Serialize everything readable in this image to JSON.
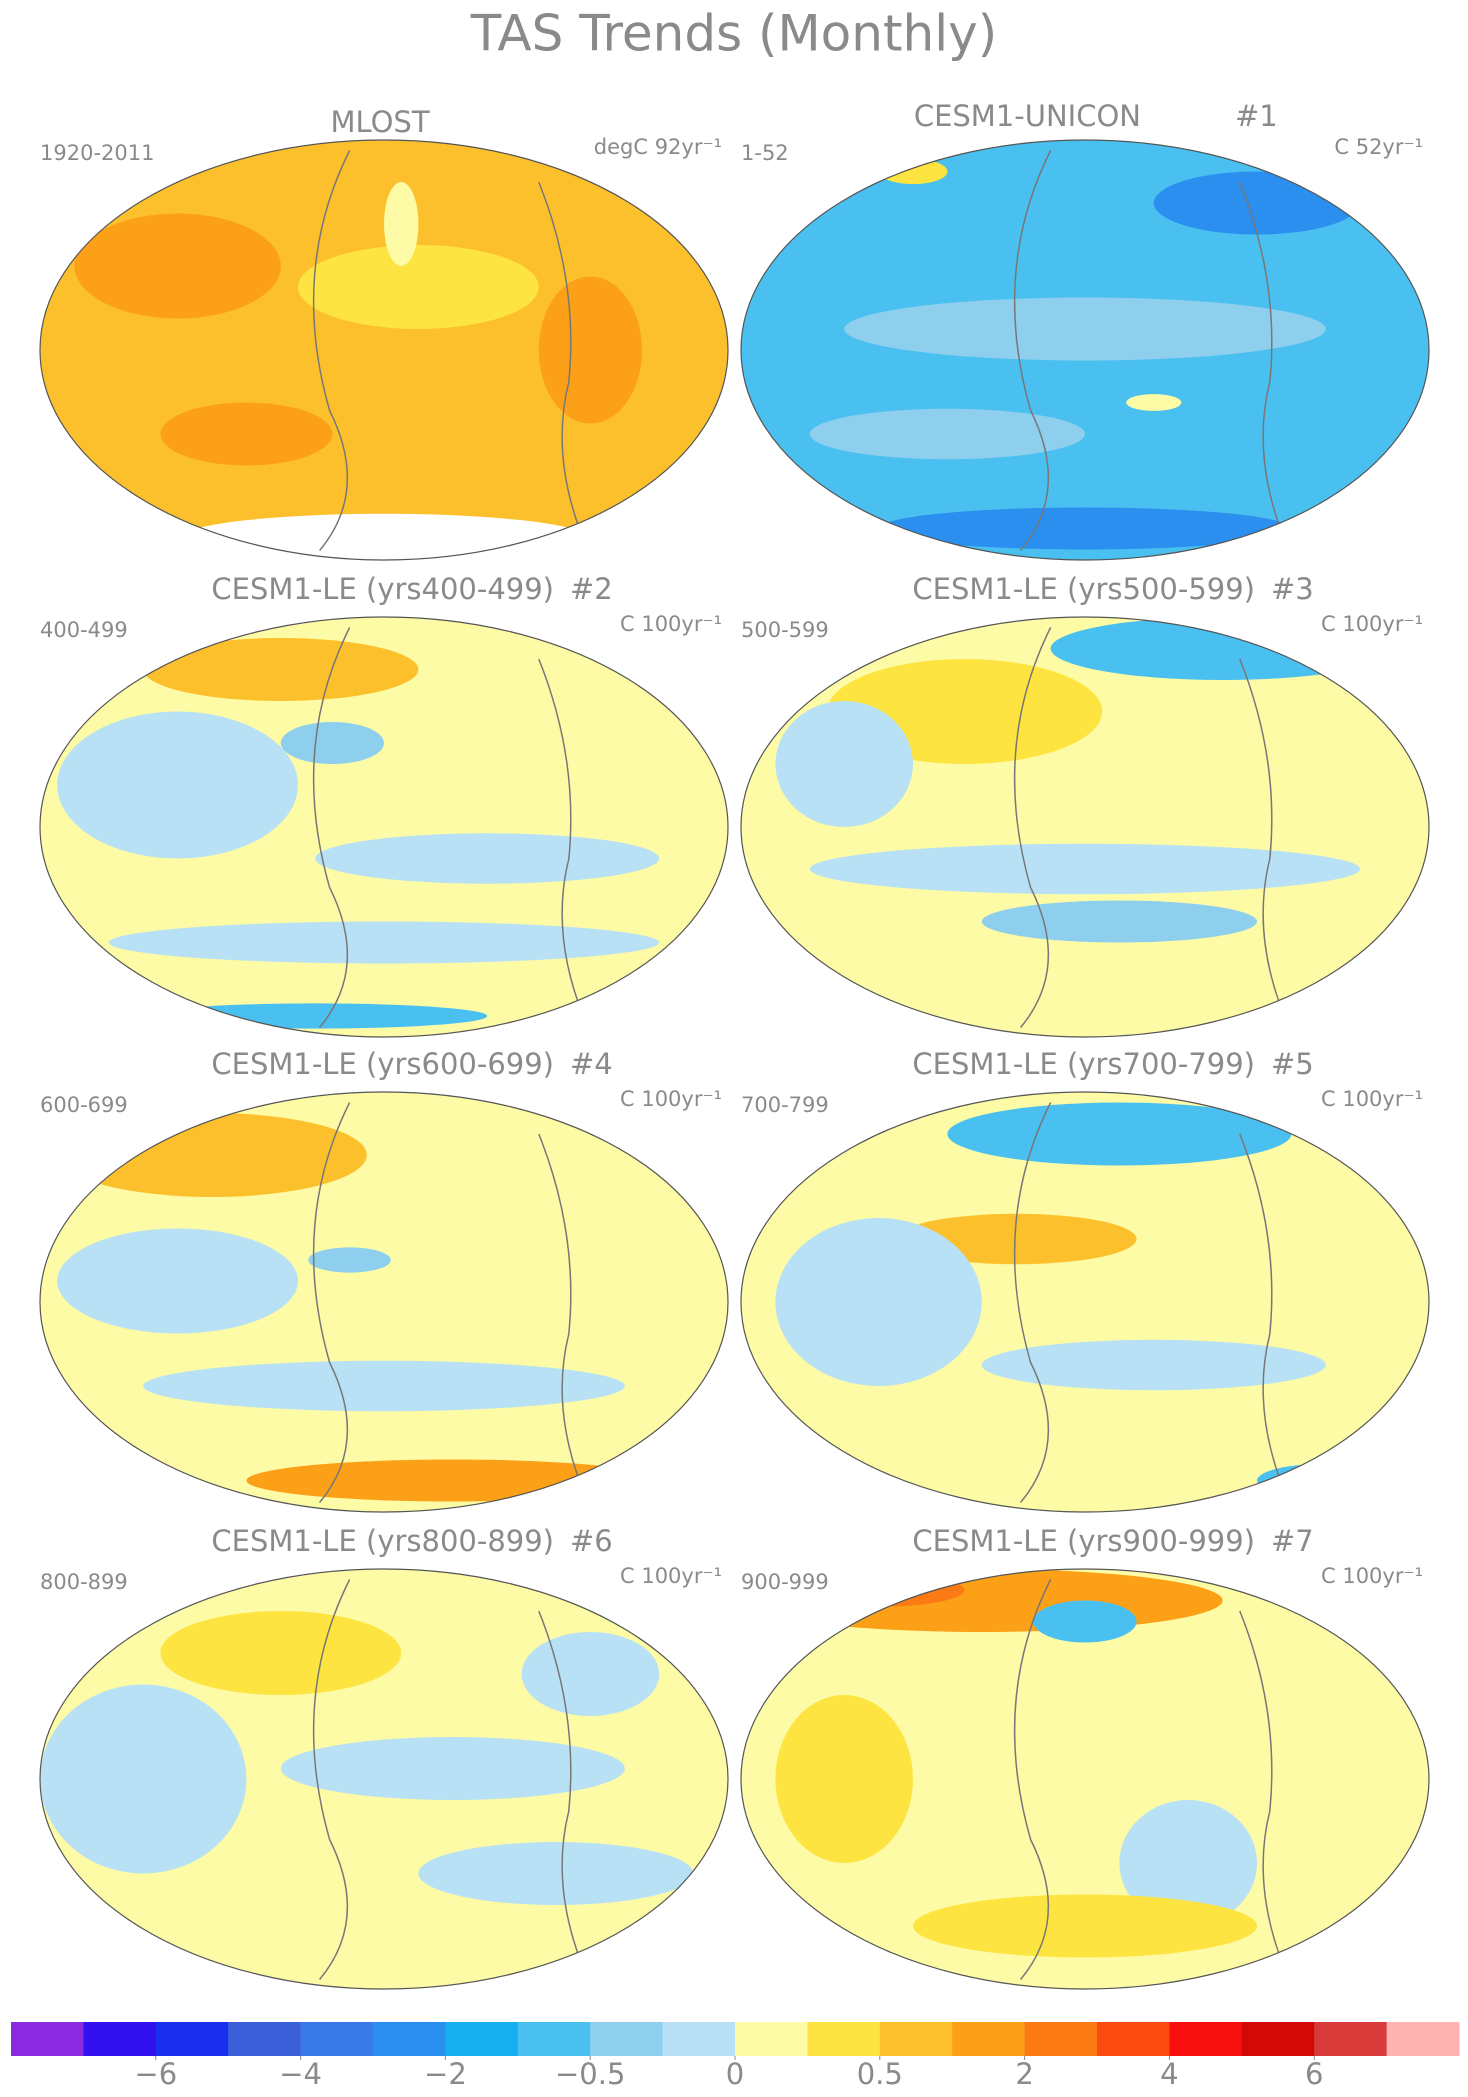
{
  "title": "TAS Trends (Monthly)",
  "panels": [
    {
      "title": "MLOST",
      "left_label": "1920-2011",
      "right_label": "degC 92yr⁻¹"
    },
    {
      "title": "CESM1-UNICON",
      "number": "#1",
      "left_label": "1-52",
      "right_label": "C 52yr⁻¹"
    },
    {
      "title": "CESM1-LE (yrs400-499)",
      "number": "#2",
      "left_label": "400-499",
      "right_label": "C 100yr⁻¹"
    },
    {
      "title": "CESM1-LE (yrs500-599)",
      "number": "#3",
      "left_label": "500-599",
      "right_label": "C 100yr⁻¹"
    },
    {
      "title": "CESM1-LE (yrs600-699)",
      "number": "#4",
      "left_label": "600-699",
      "right_label": "C 100yr⁻¹"
    },
    {
      "title": "CESM1-LE (yrs700-799)",
      "number": "#5",
      "left_label": "700-799",
      "right_label": "C 100yr⁻¹"
    },
    {
      "title": "CESM1-LE (yrs800-899)",
      "number": "#6",
      "left_label": "800-899",
      "right_label": "C 100yr⁻¹"
    },
    {
      "title": "CESM1-LE (yrs900-999)",
      "number": "#7",
      "left_label": "900-999",
      "right_label": "C 100yr⁻¹"
    }
  ],
  "colorbar": {
    "colors": [
      "#8a2be2",
      "#3311ee",
      "#1a2ef0",
      "#3a5fd9",
      "#3a7ae8",
      "#2a8fef",
      "#16b0f0",
      "#4ac0f0",
      "#8ecfee",
      "#b8e1f5",
      "#fdfba5",
      "#fde440",
      "#fcc02c",
      "#fca018",
      "#fb7a14",
      "#fb4a10",
      "#f81010",
      "#d50808",
      "#d83a3a",
      "#ffb3b3"
    ],
    "ticks": [
      {
        "value": -6,
        "label": "−6"
      },
      {
        "value": -4,
        "label": "−4"
      },
      {
        "value": -2,
        "label": "−2"
      },
      {
        "value": -0.5,
        "label": "−0.5"
      },
      0,
      0.5,
      2,
      4,
      6
    ]
  }
}
